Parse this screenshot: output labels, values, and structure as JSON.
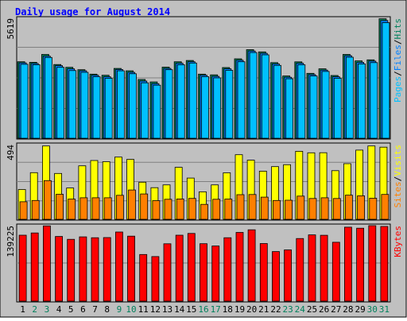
{
  "title": "Daily usage for August 2014",
  "colors": {
    "background": "#C0C0C0",
    "border": "#000000",
    "title": "#0000FF",
    "grid": "#808080",
    "hits": "#00805C",
    "files": "#0080FF",
    "pages": "#00C0FF",
    "sites": "#FF8000",
    "visits": "#FFFF00",
    "kbytes": "#FF0000",
    "weekday_label": "#000000",
    "weekend_label": "#00805C",
    "separator": "#000000"
  },
  "chart_data": [
    {
      "type": "bar",
      "name": "hits-files-pages",
      "x": [
        1,
        2,
        3,
        4,
        5,
        6,
        7,
        8,
        9,
        10,
        11,
        12,
        13,
        14,
        15,
        16,
        17,
        18,
        19,
        20,
        21,
        22,
        23,
        24,
        25,
        26,
        27,
        28,
        29,
        30,
        31
      ],
      "ymax": 5619,
      "ymax_label": "5619",
      "gridlines": 3,
      "side_label": [
        "Pages",
        "/",
        "Files",
        "/",
        "Hits"
      ],
      "series": [
        {
          "name": "Hits",
          "color": "#00805C",
          "values": [
            3560,
            3535,
            3900,
            3430,
            3300,
            3190,
            2985,
            2930,
            3250,
            3140,
            2735,
            2620,
            3310,
            3560,
            3620,
            2985,
            2950,
            3290,
            3695,
            4120,
            4020,
            3520,
            2900,
            3555,
            3020,
            3230,
            2920,
            3900,
            3600,
            3650,
            5560
          ]
        },
        {
          "name": "Files",
          "color": "#0080FF",
          "values": [
            3510,
            3480,
            3820,
            3380,
            3230,
            3140,
            2930,
            2860,
            3200,
            3070,
            2660,
            2540,
            3250,
            3490,
            3560,
            2930,
            2880,
            3230,
            3630,
            4060,
            3950,
            3460,
            2840,
            3490,
            2960,
            3170,
            2860,
            3840,
            3530,
            3590,
            5480
          ]
        },
        {
          "name": "Pages",
          "color": "#00C0FF",
          "values": [
            3440,
            3420,
            3760,
            3300,
            3150,
            3070,
            2860,
            2790,
            3140,
            3000,
            2580,
            2470,
            3190,
            3420,
            3500,
            2870,
            2810,
            3160,
            3560,
            3990,
            3880,
            3390,
            2770,
            3420,
            2900,
            3110,
            2790,
            3770,
            3460,
            3520,
            5380
          ]
        }
      ]
    },
    {
      "type": "bar",
      "name": "visits-sites",
      "x": [
        1,
        2,
        3,
        4,
        5,
        6,
        7,
        8,
        9,
        10,
        11,
        12,
        13,
        14,
        15,
        16,
        17,
        18,
        19,
        20,
        21,
        22,
        23,
        24,
        25,
        26,
        27,
        28,
        29,
        30,
        31
      ],
      "ymax": 494,
      "ymax_label": "494",
      "gridlines": 3,
      "side_label": [
        "Sites",
        "/",
        "Visits"
      ],
      "series": [
        {
          "name": "Visits",
          "color": "#FFFF00",
          "values": [
            195,
            305,
            480,
            300,
            205,
            350,
            385,
            377,
            407,
            392,
            243,
            207,
            225,
            340,
            270,
            180,
            225,
            304,
            423,
            387,
            315,
            345,
            357,
            445,
            435,
            436,
            318,
            364,
            453,
            480,
            472
          ]
        },
        {
          "name": "Sites",
          "color": "#FF8000",
          "values": [
            115,
            123,
            253,
            164,
            132,
            141,
            141,
            141,
            157,
            192,
            166,
            122,
            131,
            133,
            137,
            98,
            131,
            132,
            161,
            162,
            145,
            123,
            125,
            152,
            136,
            141,
            136,
            158,
            154,
            138,
            163
          ]
        }
      ]
    },
    {
      "type": "bar",
      "name": "kbytes",
      "x": [
        1,
        2,
        3,
        4,
        5,
        6,
        7,
        8,
        9,
        10,
        11,
        12,
        13,
        14,
        15,
        16,
        17,
        18,
        19,
        20,
        21,
        22,
        23,
        24,
        25,
        26,
        27,
        28,
        29,
        30,
        31
      ],
      "ymax": 139225,
      "ymax_label": "139225",
      "gridlines": 1,
      "side_label": [
        "KBytes"
      ],
      "series": [
        {
          "name": "KBytes",
          "color": "#FF0000",
          "values": [
            120300,
            124500,
            137300,
            118100,
            112800,
            117300,
            115800,
            116000,
            126200,
            118700,
            85200,
            81300,
            104700,
            120400,
            123600,
            104800,
            100600,
            115800,
            125500,
            130200,
            105200,
            90500,
            93500,
            114300,
            120900,
            120200,
            107500,
            135000,
            133200,
            137800,
            136300
          ]
        }
      ]
    }
  ],
  "x_axis": {
    "labels": [
      "1",
      "2",
      "3",
      "4",
      "5",
      "6",
      "7",
      "8",
      "9",
      "10",
      "11",
      "12",
      "13",
      "14",
      "15",
      "16",
      "17",
      "18",
      "19",
      "20",
      "21",
      "22",
      "23",
      "24",
      "25",
      "26",
      "27",
      "28",
      "29",
      "30",
      "31"
    ],
    "weekend_days": [
      2,
      3,
      9,
      10,
      16,
      17,
      23,
      24,
      30,
      31
    ]
  }
}
